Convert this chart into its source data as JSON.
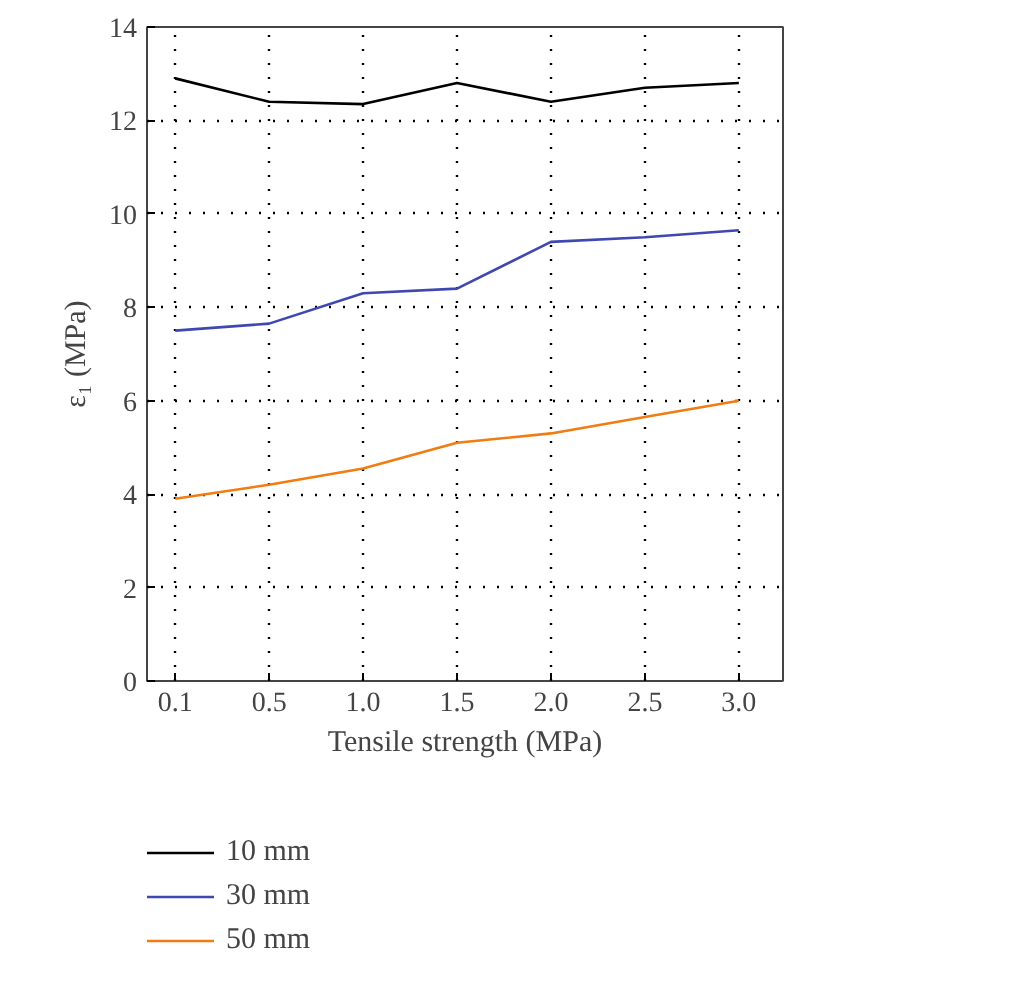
{
  "chart_data": {
    "type": "line",
    "xlabel": "Tensile strength (MPa)",
    "ylabel": "ε₁ (MPa)",
    "categories": [
      "0.1",
      "0.5",
      "1.0",
      "1.5",
      "2.0",
      "2.5",
      "3.0"
    ],
    "ylim": [
      0,
      14
    ],
    "yticks": [
      0,
      2,
      4,
      6,
      8,
      10,
      12,
      14
    ],
    "grid": true,
    "legend": "bottom",
    "line_style": "solid",
    "series": [
      {
        "name": "10 mm",
        "color": "#000000",
        "values": [
          12.9,
          12.4,
          12.35,
          12.8,
          12.4,
          12.7,
          12.8
        ]
      },
      {
        "name": "30 mm",
        "color": "#3f48b0",
        "values": [
          7.5,
          7.65,
          8.3,
          8.4,
          9.4,
          9.5,
          9.65
        ]
      },
      {
        "name": "50 mm",
        "color": "#f07c12",
        "values": [
          3.9,
          4.2,
          4.55,
          5.1,
          5.3,
          5.65,
          6.0
        ]
      }
    ]
  }
}
